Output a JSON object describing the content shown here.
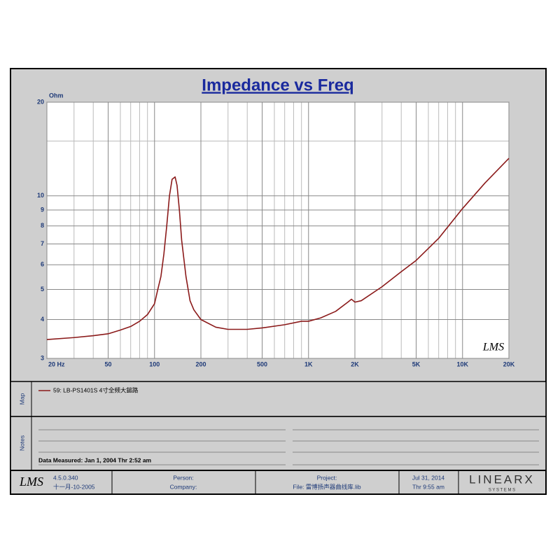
{
  "chart_data": {
    "type": "line",
    "title": "Impedance vs Freq",
    "y_unit": "Ohm",
    "watermark": "LMS",
    "xscale": "log",
    "yscale": "log",
    "grid": true,
    "xlim": [
      20,
      20000
    ],
    "ylim": [
      3,
      20
    ],
    "xticks": [
      {
        "value": 20,
        "label": "20  Hz"
      },
      50,
      100,
      200,
      500,
      {
        "value": 1000,
        "label": "1K"
      },
      {
        "value": 2000,
        "label": "2K"
      },
      {
        "value": 5000,
        "label": "5K"
      },
      {
        "value": 10000,
        "label": "10K"
      },
      {
        "value": 20000,
        "label": "20K"
      }
    ],
    "yticks": [
      3,
      4,
      5,
      6,
      7,
      8,
      9,
      10,
      20
    ],
    "x_minor_grid": [
      30,
      40,
      60,
      70,
      80,
      90,
      300,
      400,
      600,
      700,
      800,
      900,
      3000,
      4000,
      6000,
      7000,
      8000,
      9000
    ],
    "y_minor_grid": [
      15
    ],
    "x": [
      20,
      30,
      40,
      50,
      60,
      70,
      80,
      90,
      100,
      105,
      110,
      115,
      120,
      125,
      130,
      136,
      140,
      145,
      150,
      160,
      170,
      180,
      200,
      250,
      300,
      400,
      500,
      700,
      900,
      1000,
      1200,
      1500,
      1800,
      1900,
      2000,
      2200,
      3000,
      4000,
      5000,
      7000,
      10000,
      14000,
      20000
    ],
    "series": [
      {
        "name": "59: LB-PS1401S 4寸全频大鎚路",
        "color": "#8b1a1a",
        "values": [
          3.45,
          3.5,
          3.55,
          3.6,
          3.7,
          3.8,
          3.95,
          4.15,
          4.5,
          5.0,
          5.5,
          6.5,
          8.0,
          10,
          11.3,
          11.5,
          10.8,
          9.0,
          7.2,
          5.5,
          4.6,
          4.3,
          4.0,
          3.78,
          3.72,
          3.72,
          3.76,
          3.85,
          3.95,
          3.95,
          4.05,
          4.25,
          4.55,
          4.65,
          4.55,
          4.6,
          5.1,
          5.7,
          6.2,
          7.3,
          9.1,
          11.0,
          13.2
        ]
      }
    ]
  },
  "panels": {
    "map_label": "Map",
    "notes_label": "Notes",
    "measured": "Data Measured: Jan  1, 2004  Thr  2:52 am",
    "footer": {
      "logo": "LMS",
      "version": "4.5.0.340",
      "build_date": "十一月-10-2005",
      "person": "Person:",
      "company": "Company:",
      "project": "Project:",
      "file": "File: 雷博扬声器曲线库.lib",
      "date": "Jul 31, 2014",
      "time": "Thr  9:55 am",
      "brand": "LINEARX",
      "brand_sub": "S Y S T E M S"
    }
  }
}
